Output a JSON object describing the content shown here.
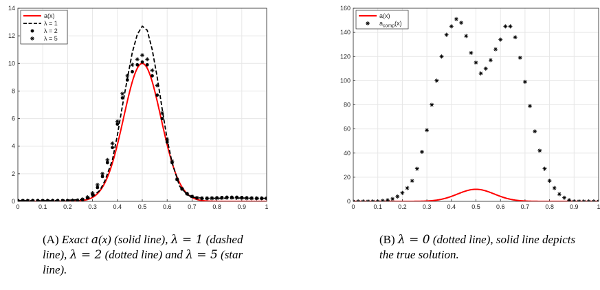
{
  "chart_data": [
    {
      "type": "line",
      "panel": "A",
      "title": "",
      "xlabel": "",
      "ylabel": "",
      "xlim": [
        0,
        1
      ],
      "ylim": [
        0,
        14
      ],
      "xticks": [
        "0",
        "0.1",
        "0.2",
        "0.3",
        "0.4",
        "0.5",
        "0.6",
        "0.7",
        "0.8",
        "0.9",
        "1"
      ],
      "yticks": [
        "0",
        "2",
        "4",
        "6",
        "8",
        "10",
        "12",
        "14"
      ],
      "grid": true,
      "legend_position": "top-left",
      "series": [
        {
          "name": "a(x)",
          "style": "solid",
          "color": "#ff0000",
          "function": "gaussian",
          "peak": 10,
          "center": 0.5,
          "sigma": 0.075
        },
        {
          "name": "λ = 1",
          "style": "dashed",
          "color": "#000000",
          "x": [
            0,
            0.05,
            0.1,
            0.15,
            0.2,
            0.25,
            0.28,
            0.3,
            0.33,
            0.35,
            0.38,
            0.4,
            0.42,
            0.44,
            0.46,
            0.48,
            0.5,
            0.52,
            0.54,
            0.56,
            0.58,
            0.6,
            0.62,
            0.65,
            0.68,
            0.7,
            0.75,
            0.8,
            0.85,
            0.9,
            0.95,
            1
          ],
          "y": [
            0.05,
            0.05,
            0.05,
            0.05,
            0.08,
            0.12,
            0.2,
            0.35,
            0.8,
            1.5,
            3.0,
            4.8,
            6.9,
            8.9,
            10.8,
            12.1,
            12.7,
            12.4,
            11.0,
            9.0,
            6.7,
            4.5,
            2.8,
            1.1,
            0.5,
            0.3,
            0.22,
            0.22,
            0.24,
            0.24,
            0.22,
            0.22
          ]
        },
        {
          "name": "λ = 2",
          "style": "dots",
          "color": "#000000",
          "x": [
            0,
            0.02,
            0.04,
            0.06,
            0.08,
            0.1,
            0.12,
            0.14,
            0.16,
            0.18,
            0.2,
            0.22,
            0.24,
            0.26,
            0.28,
            0.3,
            0.32,
            0.34,
            0.36,
            0.38,
            0.4,
            0.42,
            0.44,
            0.46,
            0.48,
            0.5,
            0.52,
            0.54,
            0.56,
            0.58,
            0.6,
            0.62,
            0.64,
            0.66,
            0.68,
            0.7,
            0.72,
            0.74,
            0.76,
            0.78,
            0.8,
            0.82,
            0.84,
            0.86,
            0.88,
            0.9,
            0.92,
            0.94,
            0.96,
            0.98,
            1
          ],
          "y": [
            0.05,
            0.05,
            0.05,
            0.05,
            0.05,
            0.05,
            0.05,
            0.05,
            0.05,
            0.05,
            0.05,
            0.05,
            0.05,
            0.12,
            0.25,
            0.5,
            1.0,
            1.8,
            2.8,
            3.9,
            5.6,
            7.5,
            8.8,
            9.4,
            9.9,
            10.1,
            9.9,
            9.1,
            7.7,
            6.0,
            4.3,
            2.8,
            1.6,
            0.9,
            0.55,
            0.35,
            0.25,
            0.22,
            0.22,
            0.24,
            0.26,
            0.28,
            0.3,
            0.3,
            0.3,
            0.28,
            0.26,
            0.24,
            0.22,
            0.22,
            0.22
          ]
        },
        {
          "name": "λ = 5",
          "style": "stars",
          "color": "#000000",
          "x": [
            0,
            0.02,
            0.04,
            0.06,
            0.08,
            0.1,
            0.12,
            0.14,
            0.16,
            0.18,
            0.2,
            0.22,
            0.24,
            0.26,
            0.28,
            0.3,
            0.32,
            0.34,
            0.36,
            0.38,
            0.4,
            0.42,
            0.44,
            0.46,
            0.48,
            0.5,
            0.52,
            0.54,
            0.56,
            0.58,
            0.6,
            0.62,
            0.64,
            0.66,
            0.68,
            0.7,
            0.72,
            0.74,
            0.76,
            0.78,
            0.8,
            0.82,
            0.84,
            0.86,
            0.88,
            0.9,
            0.92,
            0.94,
            0.96,
            0.98,
            1
          ],
          "y": [
            0.05,
            0.05,
            0.05,
            0.05,
            0.05,
            0.05,
            0.05,
            0.05,
            0.05,
            0.05,
            0.05,
            0.06,
            0.08,
            0.15,
            0.3,
            0.6,
            1.2,
            2.0,
            3.0,
            4.2,
            5.8,
            7.8,
            9.1,
            9.9,
            10.3,
            10.6,
            10.3,
            9.5,
            8.4,
            6.4,
            4.5,
            2.9,
            1.6,
            0.9,
            0.55,
            0.35,
            0.25,
            0.22,
            0.22,
            0.22,
            0.22,
            0.24,
            0.26,
            0.26,
            0.25,
            0.24,
            0.22,
            0.22,
            0.22,
            0.22,
            0.22
          ]
        }
      ]
    },
    {
      "type": "line",
      "panel": "B",
      "title": "",
      "xlabel": "",
      "ylabel": "",
      "xlim": [
        0,
        1
      ],
      "ylim": [
        0,
        160
      ],
      "xticks": [
        "0",
        "0.1",
        "0.2",
        "0.3",
        "0.4",
        "0.5",
        "0.6",
        "0.7",
        "0.8",
        "0.9",
        "1"
      ],
      "yticks": [
        "0",
        "20",
        "40",
        "60",
        "80",
        "100",
        "120",
        "140",
        "160"
      ],
      "grid": true,
      "legend_position": "top-left",
      "series": [
        {
          "name": "a(x)",
          "style": "solid",
          "color": "#ff0000",
          "function": "gaussian",
          "peak": 10,
          "center": 0.5,
          "sigma": 0.075
        },
        {
          "name": "a",
          "name_subscript": "comp",
          "name_suffix": "(x)",
          "style": "stars",
          "color": "#000000",
          "x": [
            0,
            0.02,
            0.04,
            0.06,
            0.08,
            0.1,
            0.12,
            0.14,
            0.16,
            0.18,
            0.2,
            0.22,
            0.24,
            0.26,
            0.28,
            0.3,
            0.32,
            0.34,
            0.36,
            0.38,
            0.4,
            0.42,
            0.44,
            0.46,
            0.48,
            0.5,
            0.52,
            0.54,
            0.56,
            0.58,
            0.6,
            0.62,
            0.64,
            0.66,
            0.68,
            0.7,
            0.72,
            0.74,
            0.76,
            0.78,
            0.8,
            0.82,
            0.84,
            0.86,
            0.88,
            0.9,
            0.92,
            0.94,
            0.96,
            0.98,
            1
          ],
          "y": [
            0,
            0,
            0,
            0,
            0,
            0,
            0.5,
            1,
            2,
            4,
            7,
            11,
            17,
            27,
            41,
            59,
            80,
            100,
            120,
            138,
            145,
            151,
            148,
            137,
            123,
            115,
            106,
            110,
            117,
            126,
            134,
            145,
            145,
            136,
            119,
            99,
            79,
            58,
            42,
            27,
            17,
            11,
            6,
            3,
            1,
            0,
            0,
            0,
            0,
            0,
            0
          ]
        }
      ]
    }
  ],
  "captions": {
    "a": {
      "tag": "(A)",
      "text_1": "Exact",
      "math_1": "a",
      "math_1b": "(x)",
      "text_2": "(solid line),",
      "math_2": "λ = 1",
      "text_3": "(dashed line),",
      "math_3": "λ = 2",
      "text_4": "(dotted line) and",
      "math_4": "λ = 5",
      "text_5": "(star line)."
    },
    "b": {
      "tag": "(B)",
      "math_1": "λ = 0",
      "text_1": "(dotted line), solid line depicts the true solution."
    }
  }
}
